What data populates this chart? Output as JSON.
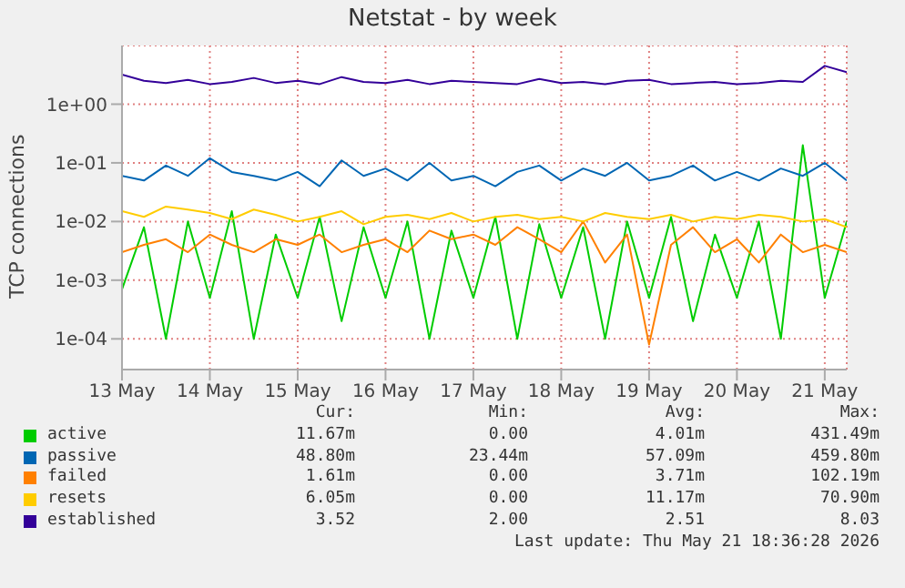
{
  "chart_data": {
    "type": "line",
    "title": "Netstat - by week",
    "ylabel": "TCP connections",
    "log": "y",
    "grid": true,
    "legend": "bottom",
    "marker": "none",
    "x": [
      "2026-05-13T00:00",
      "2026-05-13T06:00",
      "2026-05-13T12:00",
      "2026-05-13T18:00",
      "2026-05-14T00:00",
      "2026-05-14T06:00",
      "2026-05-14T12:00",
      "2026-05-14T18:00",
      "2026-05-15T00:00",
      "2026-05-15T06:00",
      "2026-05-15T12:00",
      "2026-05-15T18:00",
      "2026-05-16T00:00",
      "2026-05-16T06:00",
      "2026-05-16T12:00",
      "2026-05-16T18:00",
      "2026-05-17T00:00",
      "2026-05-17T06:00",
      "2026-05-17T12:00",
      "2026-05-17T18:00",
      "2026-05-18T00:00",
      "2026-05-18T06:00",
      "2026-05-18T12:00",
      "2026-05-18T18:00",
      "2026-05-19T00:00",
      "2026-05-19T06:00",
      "2026-05-19T12:00",
      "2026-05-19T18:00",
      "2026-05-20T00:00",
      "2026-05-20T06:00",
      "2026-05-20T12:00",
      "2026-05-20T18:00",
      "2026-05-21T00:00",
      "2026-05-21T06:00"
    ],
    "xlim": [
      "2026-05-13T00:00",
      "2026-05-21T06:00"
    ],
    "xticks": [
      {
        "value": "2026-05-13",
        "label": "13 May"
      },
      {
        "value": "2026-05-14",
        "label": "14 May"
      },
      {
        "value": "2026-05-15",
        "label": "15 May"
      },
      {
        "value": "2026-05-16",
        "label": "16 May"
      },
      {
        "value": "2026-05-17",
        "label": "17 May"
      },
      {
        "value": "2026-05-18",
        "label": "18 May"
      },
      {
        "value": "2026-05-19",
        "label": "19 May"
      },
      {
        "value": "2026-05-20",
        "label": "20 May"
      },
      {
        "value": "2026-05-21",
        "label": "21 May"
      }
    ],
    "ylim": [
      3e-05,
      10
    ],
    "yticks": [
      {
        "value": 0.0001,
        "label": "1e-04"
      },
      {
        "value": 0.001,
        "label": "1e-03"
      },
      {
        "value": 0.01,
        "label": "1e-02"
      },
      {
        "value": 0.1,
        "label": "1e-01"
      },
      {
        "value": 1,
        "label": "1e+00"
      }
    ],
    "series": [
      {
        "name": "active",
        "color": "#00cc00",
        "values": [
          0.0007,
          0.008,
          0.0001,
          0.01,
          0.0005,
          0.015,
          0.0001,
          0.006,
          0.0005,
          0.012,
          0.0002,
          0.008,
          0.0005,
          0.01,
          0.0001,
          0.007,
          0.0005,
          0.012,
          0.0001,
          0.009,
          0.0005,
          0.008,
          0.0001,
          0.01,
          0.0005,
          0.012,
          0.0002,
          0.006,
          0.0005,
          0.01,
          0.0001,
          0.2,
          0.0005,
          0.01
        ]
      },
      {
        "name": "passive",
        "color": "#0066b3",
        "values": [
          0.06,
          0.05,
          0.09,
          0.06,
          0.12,
          0.07,
          0.06,
          0.05,
          0.07,
          0.04,
          0.11,
          0.06,
          0.08,
          0.05,
          0.1,
          0.05,
          0.06,
          0.04,
          0.07,
          0.09,
          0.05,
          0.08,
          0.06,
          0.1,
          0.05,
          0.06,
          0.09,
          0.05,
          0.07,
          0.05,
          0.08,
          0.06,
          0.1,
          0.05
        ]
      },
      {
        "name": "failed",
        "color": "#ff8000",
        "values": [
          0.003,
          0.004,
          0.005,
          0.003,
          0.006,
          0.004,
          0.003,
          0.005,
          0.004,
          0.006,
          0.003,
          0.004,
          0.005,
          0.003,
          0.007,
          0.005,
          0.006,
          0.004,
          0.008,
          0.005,
          0.003,
          0.01,
          0.002,
          0.006,
          8e-05,
          0.004,
          0.008,
          0.003,
          0.005,
          0.002,
          0.006,
          0.003,
          0.004,
          0.003
        ]
      },
      {
        "name": "resets",
        "color": "#ffcc00",
        "values": [
          0.015,
          0.012,
          0.018,
          0.016,
          0.014,
          0.011,
          0.016,
          0.013,
          0.01,
          0.012,
          0.015,
          0.009,
          0.012,
          0.013,
          0.011,
          0.014,
          0.01,
          0.012,
          0.013,
          0.011,
          0.012,
          0.01,
          0.014,
          0.012,
          0.011,
          0.013,
          0.01,
          0.012,
          0.011,
          0.013,
          0.012,
          0.01,
          0.011,
          0.008
        ]
      },
      {
        "name": "established",
        "color": "#330099",
        "values": [
          3.2,
          2.5,
          2.3,
          2.6,
          2.2,
          2.4,
          2.8,
          2.3,
          2.5,
          2.2,
          2.9,
          2.4,
          2.3,
          2.6,
          2.2,
          2.5,
          2.4,
          2.3,
          2.2,
          2.7,
          2.3,
          2.4,
          2.2,
          2.5,
          2.6,
          2.2,
          2.3,
          2.4,
          2.2,
          2.3,
          2.5,
          2.4,
          4.5,
          3.5
        ]
      }
    ],
    "annotations": [
      "Cur:",
      "Min:",
      "Avg:",
      "Max:",
      "11.67m",
      "0.00",
      "4.01m",
      "431.49m",
      "48.80m",
      "23.44m",
      "57.09m",
      "459.80m",
      "1.61m",
      "0.00",
      "3.71m",
      "102.19m",
      "6.05m",
      "0.00",
      "11.17m",
      "70.90m",
      "3.52",
      "2.00",
      "2.51",
      "8.03",
      "Last update: Thu May 21 18:36:28 2026"
    ]
  }
}
